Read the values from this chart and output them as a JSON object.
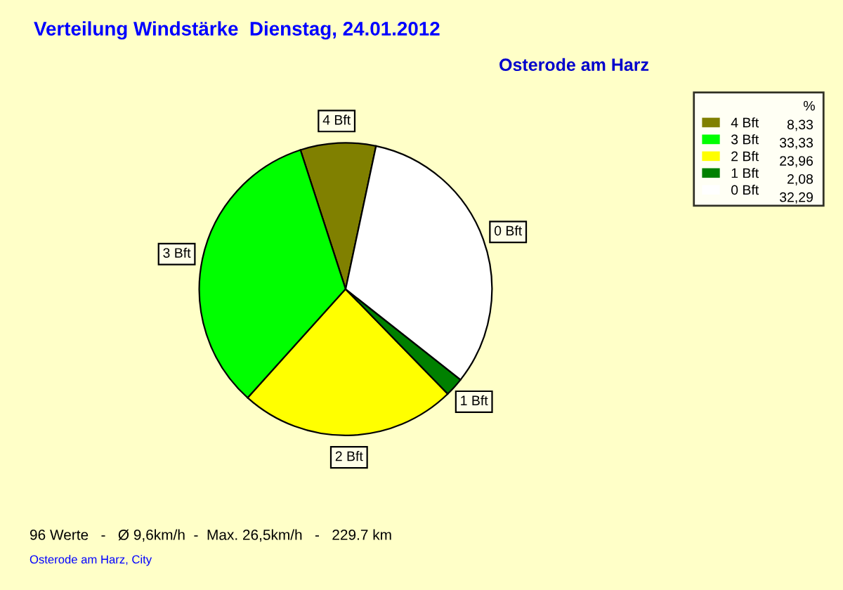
{
  "chart_data": {
    "type": "pie",
    "title": "Verteilung Windstärke  Dienstag, 24.01.2012",
    "subtitle": "Osterode am Harz",
    "categories": [
      "4 Bft",
      "3 Bft",
      "2 Bft",
      "1 Bft",
      "0 Bft"
    ],
    "values": [
      8.33,
      33.33,
      23.96,
      2.08,
      32.29
    ],
    "value_labels": [
      "8,33",
      "33,33",
      "23,96",
      "2,08",
      "32,29"
    ],
    "colors": [
      "#808000",
      "#00ff00",
      "#ffff00",
      "#008000",
      "#ffffff"
    ],
    "legend": "top right",
    "legend_title": "%",
    "annotations": [
      "96 Werte   -   Ø 9,6km/h  -  Max. 26,5km/h   -   229.7 km",
      "Osterode am Harz, City"
    ]
  }
}
